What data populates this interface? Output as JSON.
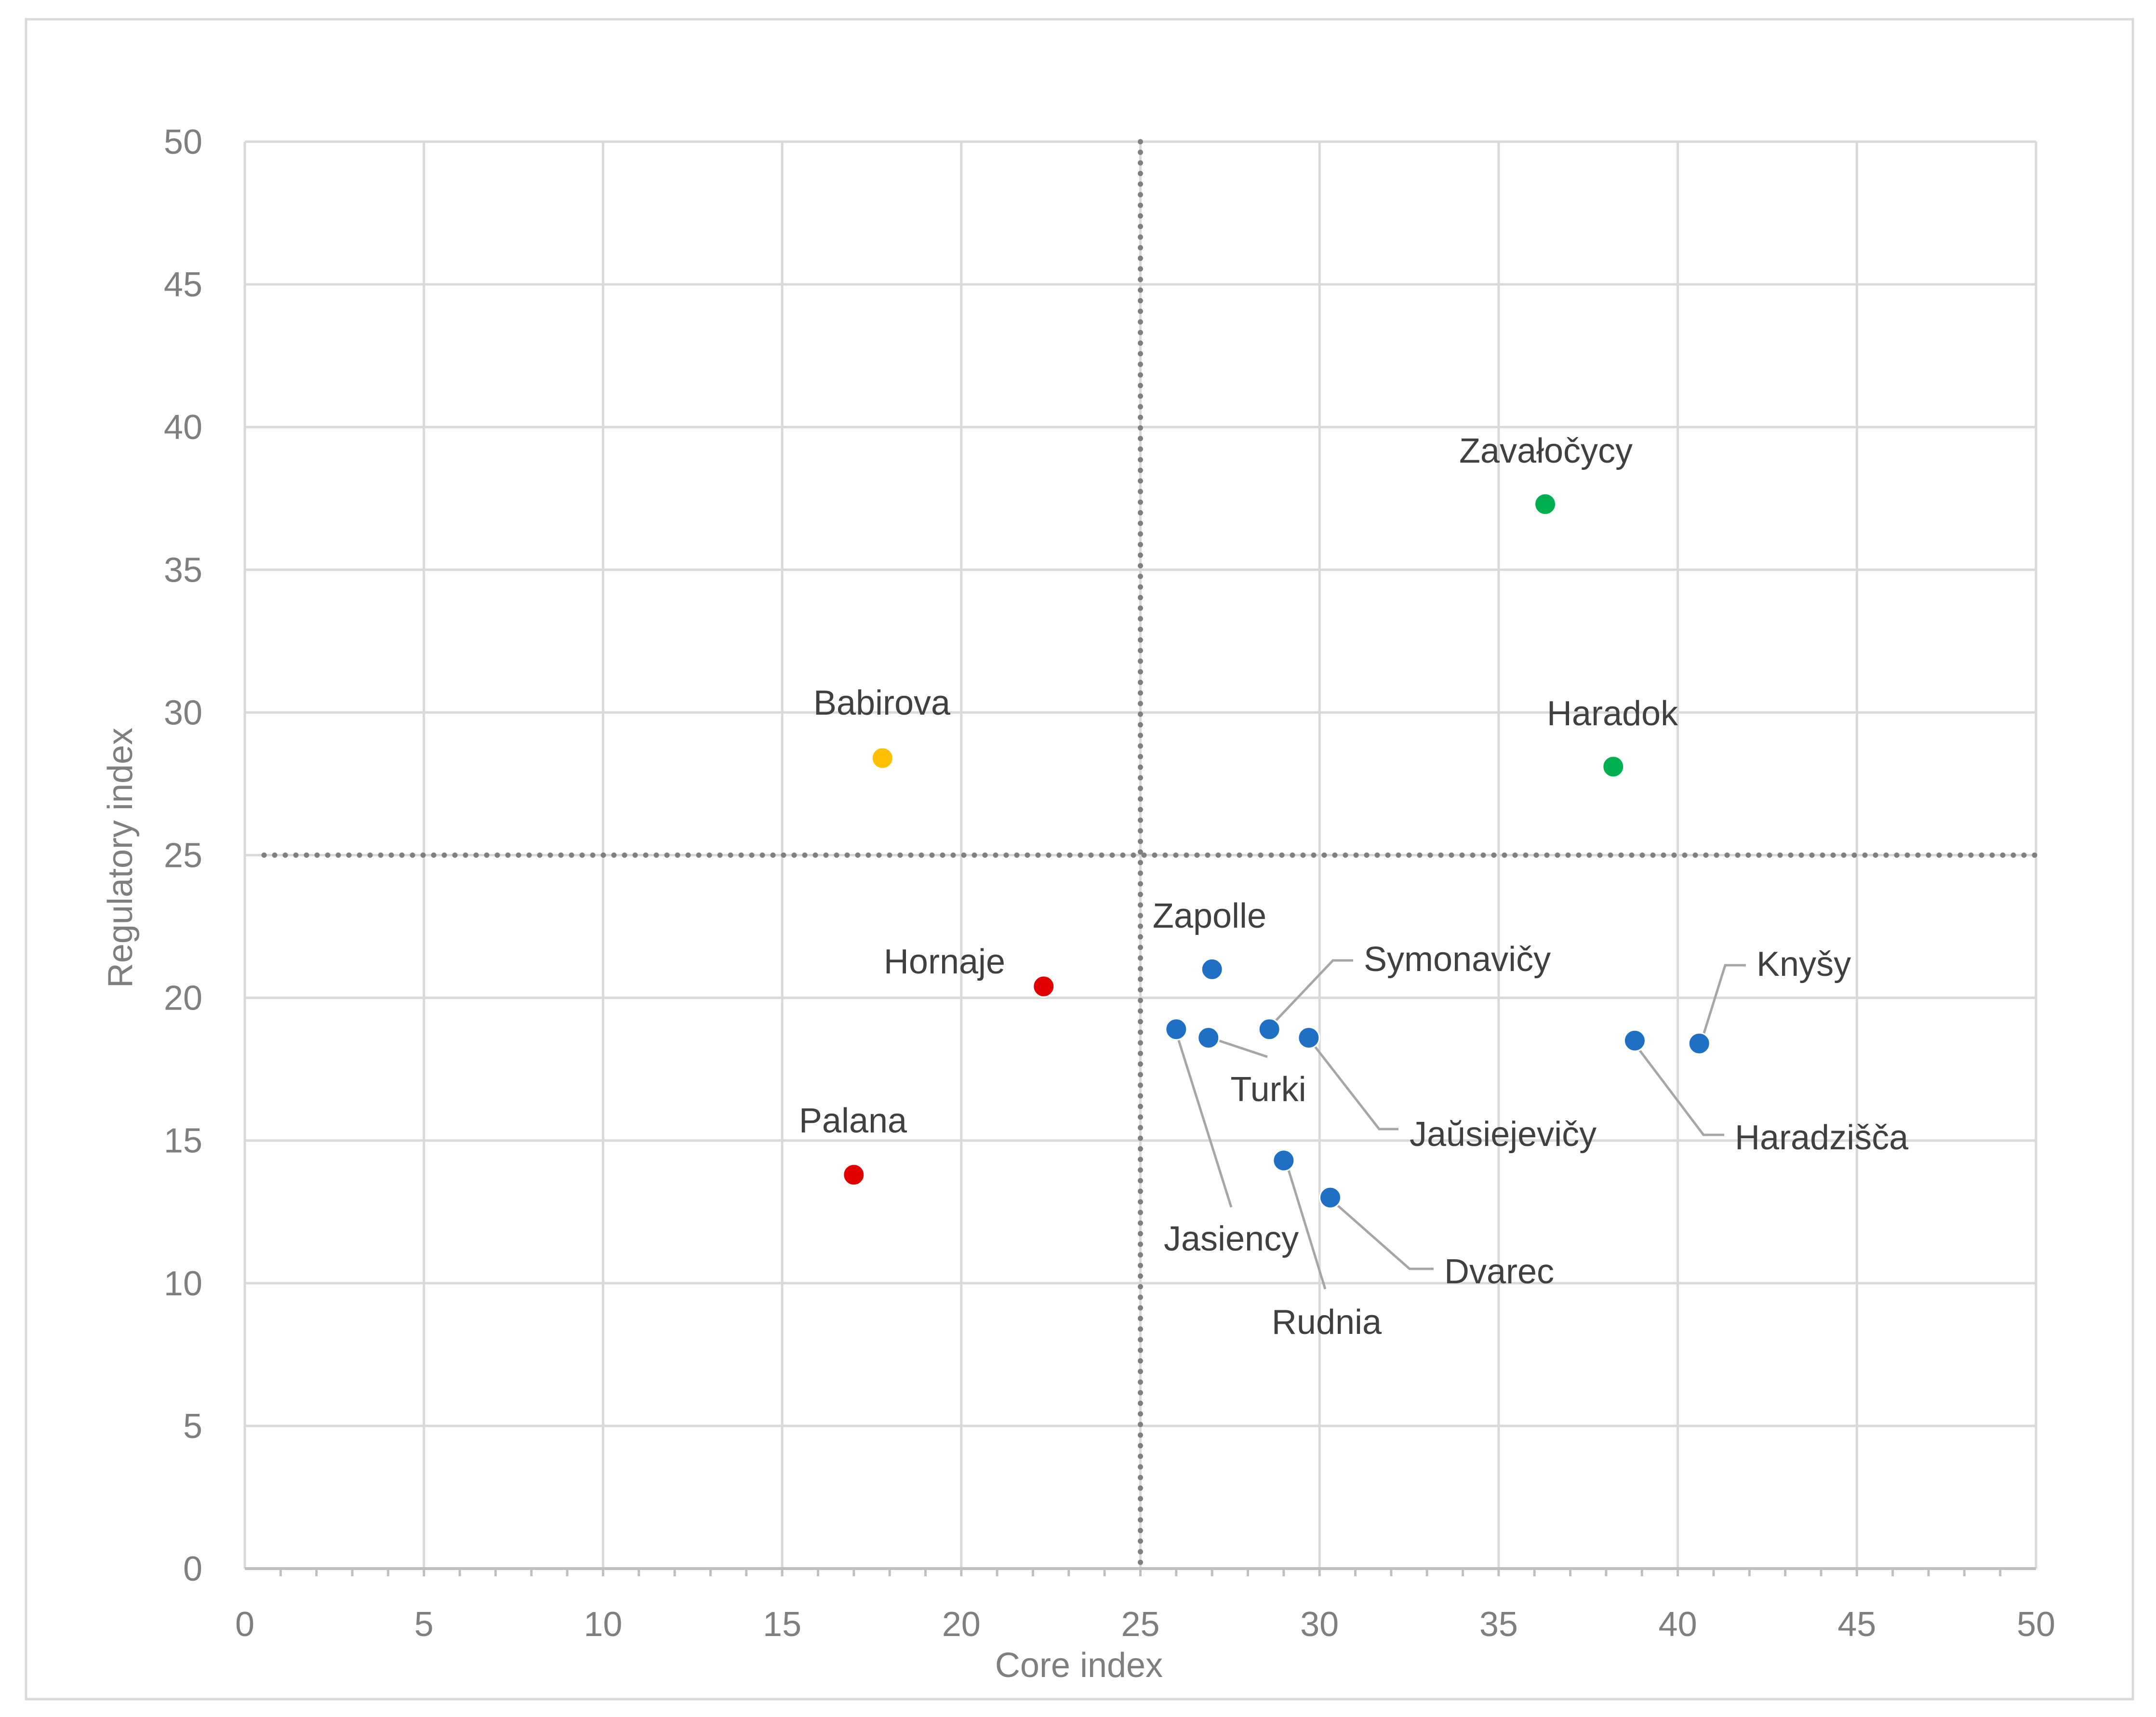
{
  "chart_data": {
    "type": "scatter",
    "title": "",
    "xlabel": "Core index",
    "ylabel": "Regulatory index",
    "xlim": [
      0,
      50
    ],
    "ylim": [
      0,
      50
    ],
    "x_ticks": [
      "0",
      "5",
      "10",
      "15",
      "20",
      "25",
      "30",
      "35",
      "40",
      "45",
      "50"
    ],
    "y_ticks": [
      "0",
      "5",
      "10",
      "15",
      "20",
      "25",
      "30",
      "35",
      "40",
      "45",
      "50"
    ],
    "grid": true,
    "reference_lines": {
      "x": 25,
      "y": 25,
      "style": "dotted"
    },
    "colors": {
      "green": "#00b050",
      "yellow": "#ffc000",
      "red": "#e00000",
      "blue": "#1f6fc5",
      "grid": "#d9d9d9",
      "axis_text": "#7f7f7f",
      "label_text": "#404040",
      "leader": "#a6a6a6",
      "reference": "#808080"
    },
    "points": [
      {
        "name": "Zavałočycy",
        "x": 36.3,
        "y": 37.3,
        "color": "green"
      },
      {
        "name": "Haradok",
        "x": 38.2,
        "y": 28.1,
        "color": "green"
      },
      {
        "name": "Babirova",
        "x": 17.8,
        "y": 28.4,
        "color": "yellow"
      },
      {
        "name": "Hornaje",
        "x": 22.3,
        "y": 20.4,
        "color": "red"
      },
      {
        "name": "Palana",
        "x": 17.0,
        "y": 13.8,
        "color": "red"
      },
      {
        "name": "Zapolle",
        "x": 27.0,
        "y": 21.0,
        "color": "blue"
      },
      {
        "name": "Symonavičy",
        "x": 28.6,
        "y": 18.9,
        "color": "blue"
      },
      {
        "name": "Jasiency",
        "x": 26.0,
        "y": 18.9,
        "color": "blue"
      },
      {
        "name": "Turki",
        "x": 26.9,
        "y": 18.6,
        "color": "blue"
      },
      {
        "name": "Jaŭsiejevičy",
        "x": 29.7,
        "y": 18.6,
        "color": "blue"
      },
      {
        "name": "Rudnia",
        "x": 29.0,
        "y": 14.3,
        "color": "blue"
      },
      {
        "name": "Dvarec",
        "x": 30.3,
        "y": 13.0,
        "color": "blue"
      },
      {
        "name": "Haradzišča",
        "x": 38.8,
        "y": 18.5,
        "color": "blue"
      },
      {
        "name": "Knyšy",
        "x": 40.6,
        "y": 18.4,
        "color": "blue"
      }
    ]
  }
}
